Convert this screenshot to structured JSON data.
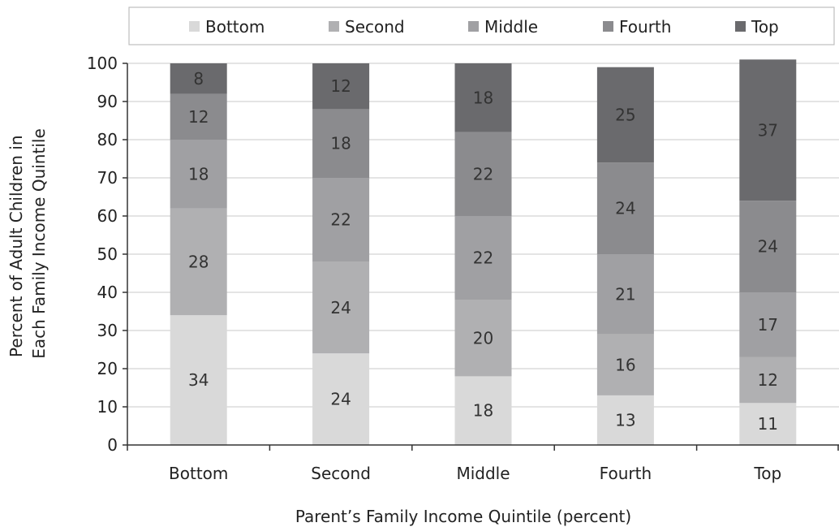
{
  "chart_data": {
    "type": "bar",
    "stacked": true,
    "categories": [
      "Bottom",
      "Second",
      "Middle",
      "Fourth",
      "Top"
    ],
    "series": [
      {
        "name": "Bottom",
        "color": "#d9d9d9",
        "values": [
          34,
          24,
          18,
          13,
          11
        ]
      },
      {
        "name": "Second",
        "color": "#b0b0b2",
        "values": [
          28,
          24,
          20,
          16,
          12
        ]
      },
      {
        "name": "Middle",
        "color": "#a0a0a3",
        "values": [
          18,
          22,
          22,
          21,
          17
        ]
      },
      {
        "name": "Fourth",
        "color": "#8b8b8e",
        "values": [
          12,
          18,
          22,
          24,
          24
        ]
      },
      {
        "name": "Top",
        "color": "#6a6a6d",
        "values": [
          8,
          12,
          18,
          25,
          37
        ]
      }
    ],
    "xlabel": "Parent’s Family Income Quintile (percent)",
    "ylabel_lines": [
      "Percent of Adult Children in",
      "Each Family Income Quintile"
    ],
    "ylim": [
      0,
      100
    ],
    "yticks": [
      0,
      10,
      20,
      30,
      40,
      50,
      60,
      70,
      80,
      90,
      100
    ],
    "grid": true,
    "legend_position": "top"
  }
}
